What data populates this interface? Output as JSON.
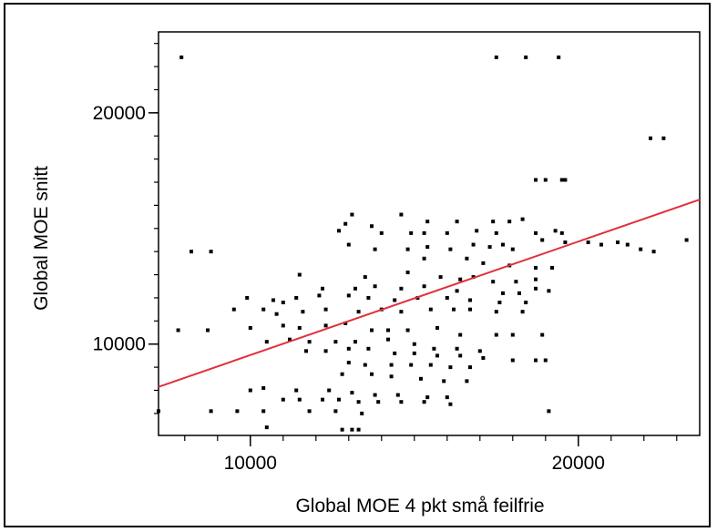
{
  "chart_data": {
    "type": "scatter",
    "title": "",
    "xlabel": "Global MOE 4 pkt små feilfrie",
    "ylabel": "Global MOE snitt",
    "xlim": [
      7200,
      23700
    ],
    "ylim": [
      6050,
      23500
    ],
    "x_ticks": [
      {
        "value": 10000,
        "label": "10000"
      },
      {
        "value": 20000,
        "label": "20000"
      }
    ],
    "y_ticks": [
      {
        "value": 10000,
        "label": "10000"
      },
      {
        "value": 20000,
        "label": "20000"
      }
    ],
    "x_minor_step": 1000,
    "y_minor_step": 1000,
    "grid": false,
    "fit_line": {
      "x": [
        7200,
        23700
      ],
      "y": [
        8150,
        16250
      ],
      "color": "#e0303c"
    },
    "marker_color": "#000000",
    "points": [
      [
        7900,
        22400
      ],
      [
        17500,
        22400
      ],
      [
        19400,
        22400
      ],
      [
        18400,
        22400
      ],
      [
        22200,
        18900
      ],
      [
        22600,
        18900
      ],
      [
        18700,
        17100
      ],
      [
        19000,
        17100
      ],
      [
        19500,
        17100
      ],
      [
        19600,
        17100
      ],
      [
        13100,
        15600
      ],
      [
        14600,
        15600
      ],
      [
        12900,
        15200
      ],
      [
        13700,
        15100
      ],
      [
        15400,
        15300
      ],
      [
        16300,
        15300
      ],
      [
        17400,
        15300
      ],
      [
        17900,
        15300
      ],
      [
        18300,
        15400
      ],
      [
        12700,
        14900
      ],
      [
        14000,
        14800
      ],
      [
        14900,
        14800
      ],
      [
        15300,
        14800
      ],
      [
        16000,
        14800
      ],
      [
        16900,
        14900
      ],
      [
        17500,
        14800
      ],
      [
        18700,
        14800
      ],
      [
        19300,
        14900
      ],
      [
        19500,
        14800
      ],
      [
        8200,
        14000
      ],
      [
        8800,
        14000
      ],
      [
        13000,
        14300
      ],
      [
        13800,
        14100
      ],
      [
        14800,
        14100
      ],
      [
        15400,
        14200
      ],
      [
        16100,
        14100
      ],
      [
        16800,
        14300
      ],
      [
        17300,
        14200
      ],
      [
        17700,
        14300
      ],
      [
        18000,
        14100
      ],
      [
        18900,
        14500
      ],
      [
        19600,
        14400
      ],
      [
        20300,
        14400
      ],
      [
        20700,
        14300
      ],
      [
        21200,
        14400
      ],
      [
        21500,
        14300
      ],
      [
        21900,
        14100
      ],
      [
        22300,
        14000
      ],
      [
        23300,
        14500
      ],
      [
        15300,
        13700
      ],
      [
        16600,
        13700
      ],
      [
        17100,
        13500
      ],
      [
        17900,
        13400
      ],
      [
        18700,
        13300
      ],
      [
        19200,
        13300
      ],
      [
        11500,
        13000
      ],
      [
        13500,
        12900
      ],
      [
        14800,
        13100
      ],
      [
        15800,
        12900
      ],
      [
        16400,
        12800
      ],
      [
        16800,
        12900
      ],
      [
        17400,
        12700
      ],
      [
        18100,
        12700
      ],
      [
        18700,
        12800
      ],
      [
        12200,
        12400
      ],
      [
        13200,
        12400
      ],
      [
        13800,
        12500
      ],
      [
        14600,
        12400
      ],
      [
        15300,
        12500
      ],
      [
        16300,
        12300
      ],
      [
        17700,
        12200
      ],
      [
        18200,
        12200
      ],
      [
        18700,
        12400
      ],
      [
        19100,
        12300
      ],
      [
        9900,
        12000
      ],
      [
        10700,
        11900
      ],
      [
        11000,
        11800
      ],
      [
        11400,
        12000
      ],
      [
        12100,
        12100
      ],
      [
        13000,
        12100
      ],
      [
        13600,
        12000
      ],
      [
        14400,
        11900
      ],
      [
        15100,
        12000
      ],
      [
        16000,
        12000
      ],
      [
        16700,
        11900
      ],
      [
        17600,
        11800
      ],
      [
        18400,
        11800
      ],
      [
        9500,
        11500
      ],
      [
        10400,
        11500
      ],
      [
        10800,
        11300
      ],
      [
        11600,
        11400
      ],
      [
        12300,
        11500
      ],
      [
        13300,
        11400
      ],
      [
        14000,
        11500
      ],
      [
        14600,
        11400
      ],
      [
        15500,
        11500
      ],
      [
        16200,
        11500
      ],
      [
        16700,
        11500
      ],
      [
        17500,
        11400
      ],
      [
        18300,
        11400
      ],
      [
        7800,
        10600
      ],
      [
        8700,
        10600
      ],
      [
        10000,
        10700
      ],
      [
        11000,
        10800
      ],
      [
        11500,
        10700
      ],
      [
        12300,
        10800
      ],
      [
        12900,
        10900
      ],
      [
        13700,
        10600
      ],
      [
        14200,
        10600
      ],
      [
        14800,
        10600
      ],
      [
        15700,
        10700
      ],
      [
        16400,
        10400
      ],
      [
        17500,
        10400
      ],
      [
        18000,
        10400
      ],
      [
        18900,
        10400
      ],
      [
        10500,
        10100
      ],
      [
        11200,
        10200
      ],
      [
        11800,
        10100
      ],
      [
        12600,
        10100
      ],
      [
        13200,
        10100
      ],
      [
        14200,
        10200
      ],
      [
        15000,
        10000
      ],
      [
        15600,
        9800
      ],
      [
        16300,
        9800
      ],
      [
        17000,
        9700
      ],
      [
        11700,
        9700
      ],
      [
        12300,
        9700
      ],
      [
        13000,
        9800
      ],
      [
        13600,
        9800
      ],
      [
        14400,
        9600
      ],
      [
        15000,
        9600
      ],
      [
        15700,
        9500
      ],
      [
        16400,
        9500
      ],
      [
        17100,
        9400
      ],
      [
        18000,
        9300
      ],
      [
        18700,
        9300
      ],
      [
        19000,
        9300
      ],
      [
        13000,
        9200
      ],
      [
        13500,
        9100
      ],
      [
        14300,
        9100
      ],
      [
        14900,
        9100
      ],
      [
        15500,
        9100
      ],
      [
        16100,
        9000
      ],
      [
        16700,
        9000
      ],
      [
        12800,
        8700
      ],
      [
        13700,
        8700
      ],
      [
        14300,
        8600
      ],
      [
        15200,
        8500
      ],
      [
        15900,
        8400
      ],
      [
        16600,
        8400
      ],
      [
        10000,
        8000
      ],
      [
        10400,
        8100
      ],
      [
        11400,
        8000
      ],
      [
        12400,
        8000
      ],
      [
        13100,
        7900
      ],
      [
        13800,
        7800
      ],
      [
        14500,
        7800
      ],
      [
        15400,
        7700
      ],
      [
        16000,
        7700
      ],
      [
        11000,
        7600
      ],
      [
        11500,
        7600
      ],
      [
        12200,
        7600
      ],
      [
        12700,
        7600
      ],
      [
        13300,
        7500
      ],
      [
        13900,
        7500
      ],
      [
        14600,
        7500
      ],
      [
        15300,
        7500
      ],
      [
        16100,
        7400
      ],
      [
        7200,
        7100
      ],
      [
        8800,
        7100
      ],
      [
        9600,
        7100
      ],
      [
        10400,
        7100
      ],
      [
        11800,
        7100
      ],
      [
        12600,
        7100
      ],
      [
        13400,
        7000
      ],
      [
        19100,
        7100
      ],
      [
        10500,
        6400
      ],
      [
        12800,
        6300
      ],
      [
        13100,
        6300
      ],
      [
        13300,
        6300
      ]
    ]
  }
}
